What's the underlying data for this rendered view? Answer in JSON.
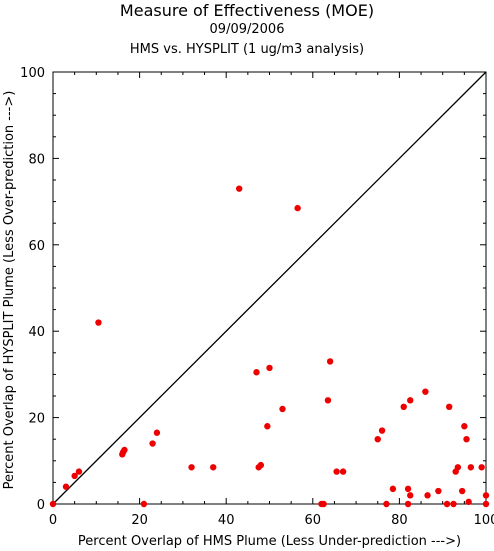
{
  "chart_data": {
    "type": "scatter",
    "title": "Measure of Effectiveness (MOE)",
    "subtitle": "09/09/2006",
    "subtitle2": "HMS vs. HYSPLIT  (1 ug/m3 analysis)",
    "xlabel": "Percent Overlap of HMS Plume (Less Under-prediction --->)",
    "ylabel": "Percent Overlap of HYSPLIT Plume (Less Over-prediction --->)",
    "xlim": [
      0,
      100
    ],
    "ylim": [
      0,
      100
    ],
    "xticks": [
      "0",
      "20",
      "40",
      "60",
      "80",
      "100"
    ],
    "yticks": [
      "0",
      "20",
      "40",
      "60",
      "80",
      "100"
    ],
    "reference_line": "y = x",
    "point_color": "#ee0000",
    "points": [
      [
        0,
        0
      ],
      [
        3,
        4
      ],
      [
        5,
        6.5
      ],
      [
        6,
        7.5
      ],
      [
        10.5,
        42
      ],
      [
        16,
        11.5
      ],
      [
        16.5,
        12.5
      ],
      [
        16.2,
        12
      ],
      [
        21,
        0
      ],
      [
        23,
        14
      ],
      [
        24,
        16.5
      ],
      [
        32,
        8.5
      ],
      [
        37,
        8.5
      ],
      [
        43,
        73
      ],
      [
        47,
        30.5
      ],
      [
        47.5,
        8.5
      ],
      [
        48,
        9
      ],
      [
        49.5,
        18
      ],
      [
        50,
        31.5
      ],
      [
        53,
        22
      ],
      [
        56.5,
        68.5
      ],
      [
        62,
        0
      ],
      [
        62.5,
        0
      ],
      [
        63.5,
        24
      ],
      [
        64,
        33
      ],
      [
        65.5,
        7.5
      ],
      [
        67,
        7.5
      ],
      [
        75,
        15
      ],
      [
        76,
        17
      ],
      [
        77,
        0
      ],
      [
        78.5,
        3.5
      ],
      [
        81,
        22.5
      ],
      [
        82,
        3.5
      ],
      [
        82.5,
        2
      ],
      [
        82,
        0
      ],
      [
        82.5,
        24
      ],
      [
        86,
        26
      ],
      [
        86.5,
        2
      ],
      [
        89,
        3
      ],
      [
        91,
        0
      ],
      [
        91.5,
        22.5
      ],
      [
        92.5,
        0
      ],
      [
        93,
        7.5
      ],
      [
        93.5,
        8.5
      ],
      [
        94.5,
        3
      ],
      [
        95,
        18
      ],
      [
        95.5,
        15
      ],
      [
        96,
        0.5
      ],
      [
        96.5,
        8.5
      ],
      [
        99,
        8.5
      ],
      [
        100,
        2
      ],
      [
        100,
        0
      ]
    ]
  }
}
